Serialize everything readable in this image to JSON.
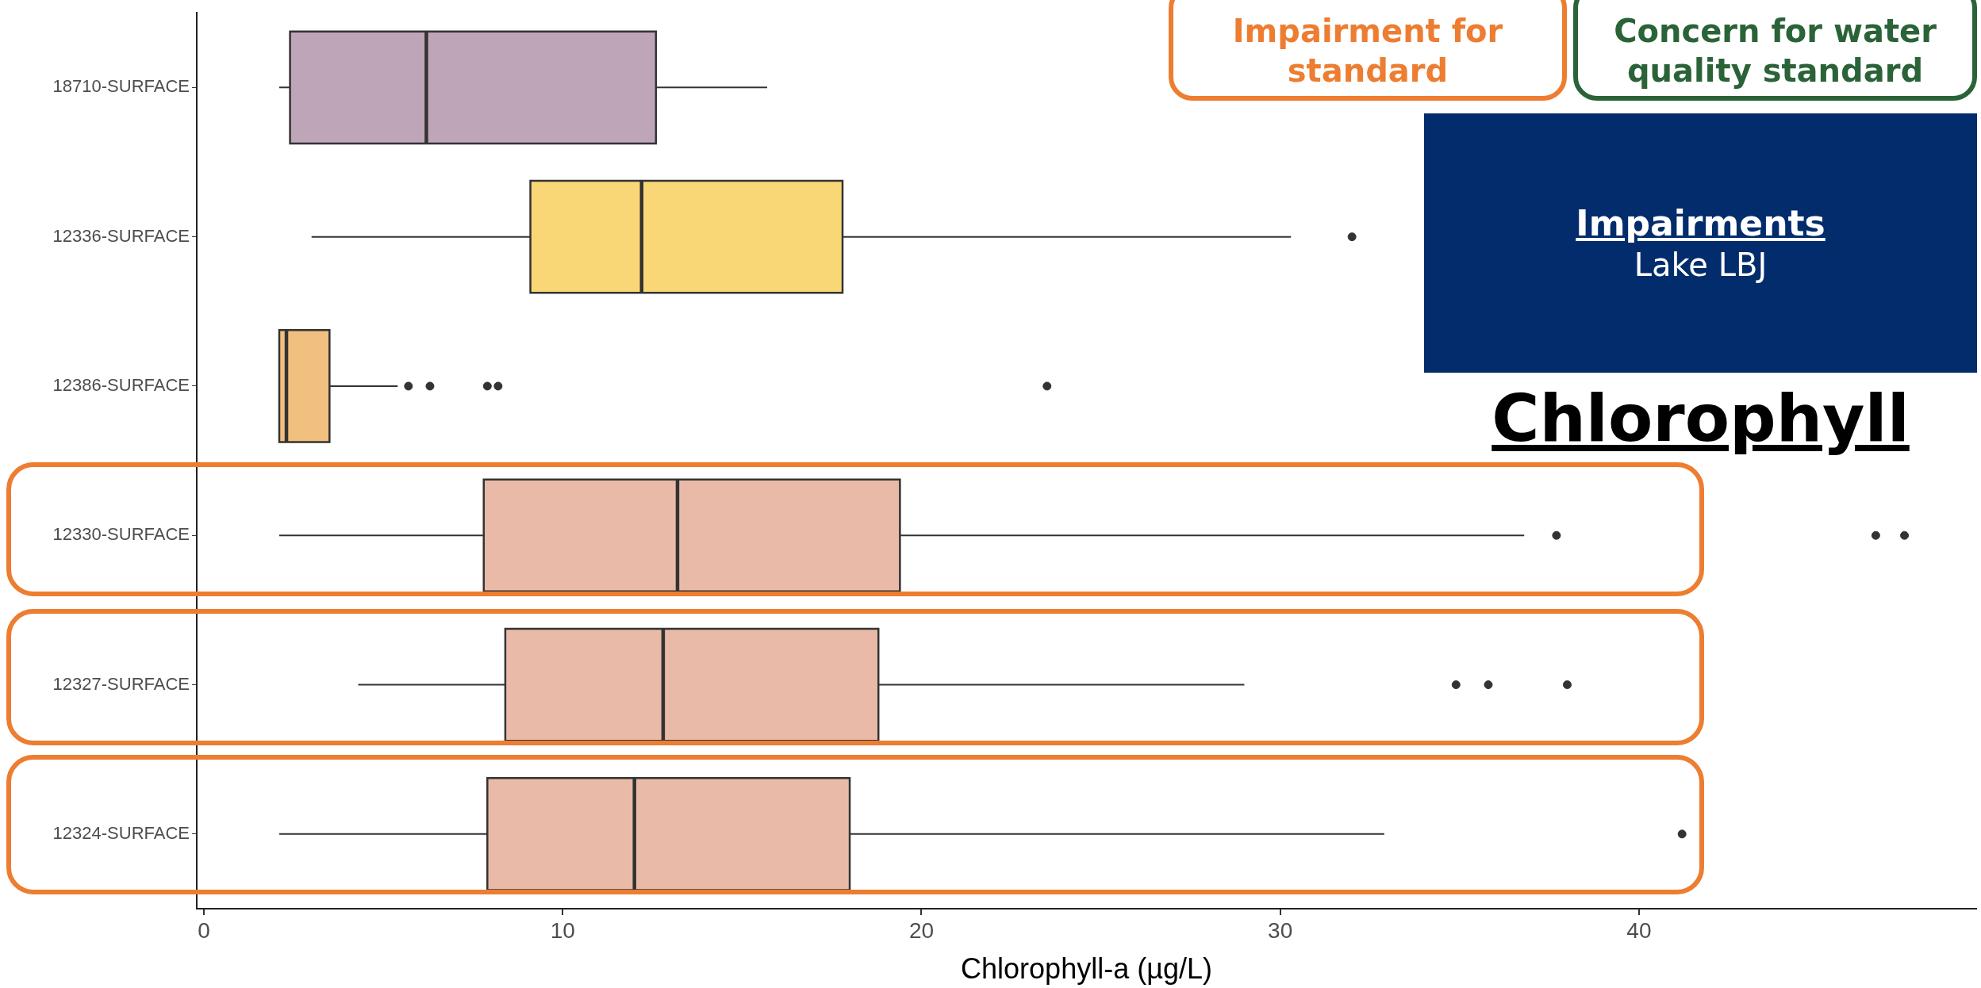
{
  "chart_data": {
    "type": "box",
    "orientation": "horizontal",
    "title": "Chlorophyll",
    "xlabel": "Chlorophyll-a (µg/L)",
    "categories": [
      "18710-SURFACE",
      "12336-SURFACE",
      "12386-SURFACE",
      "12330-SURFACE",
      "12327-SURFACE",
      "12324-SURFACE"
    ],
    "colors": [
      "#bfa5b8",
      "#fad776",
      "#f2c07e",
      "#eabaa8",
      "#eabaa8",
      "#eabaa8"
    ],
    "boxes": [
      {
        "low": 2.1,
        "q1": 2.4,
        "median": 6.2,
        "q3": 12.6,
        "high": 15.7
      },
      {
        "low": 3.0,
        "q1": 9.1,
        "median": 12.2,
        "q3": 17.8,
        "high": 30.3,
        "outliers": [
          32.0
        ]
      },
      {
        "low": 2.1,
        "q1": 2.1,
        "median": 2.3,
        "q3": 3.5,
        "high": 5.4,
        "outliers": [
          5.7,
          6.3,
          7.9,
          8.2,
          23.5
        ]
      },
      {
        "low": 2.1,
        "q1": 7.8,
        "median": 13.2,
        "q3": 19.4,
        "high": 36.8,
        "outliers": [
          37.7,
          46.6,
          47.4
        ]
      },
      {
        "low": 4.3,
        "q1": 8.4,
        "median": 12.8,
        "q3": 18.8,
        "high": 29.0,
        "outliers": [
          34.9,
          35.8,
          38.0
        ]
      },
      {
        "low": 2.1,
        "q1": 7.9,
        "median": 12.0,
        "q3": 18.0,
        "high": 32.9,
        "outliers": [
          41.2
        ]
      }
    ],
    "xlim": [
      -0.2,
      49.4
    ],
    "xticks": [
      0,
      10,
      20,
      30,
      40
    ],
    "grid": false,
    "annotations": [
      "Impairment for standard",
      "Concern for water quality standard",
      "Impairments",
      "Lake LBJ"
    ]
  }
}
